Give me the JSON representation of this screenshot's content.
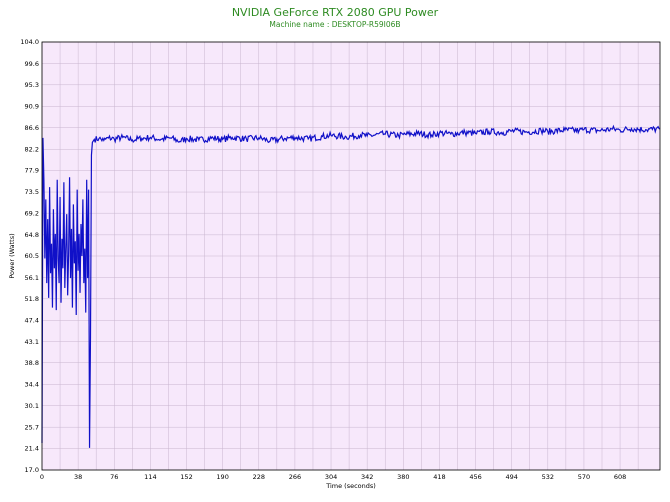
{
  "chart_data": {
    "type": "line",
    "title": "NVIDIA GeForce RTX 2080 GPU Power",
    "subtitle": "Machine name : DESKTOP-R59I06B",
    "xlabel": "Time (seconds)",
    "ylabel": "Power (Watts)",
    "xlim": [
      0,
      650
    ],
    "ylim": [
      17.0,
      104.0
    ],
    "x_ticks": [
      "0",
      "38",
      "76",
      "114",
      "152",
      "190",
      "228",
      "266",
      "304",
      "342",
      "380",
      "418",
      "456",
      "494",
      "532",
      "570",
      "608"
    ],
    "y_ticks": [
      "104.0",
      "99.6",
      "95.3",
      "90.9",
      "86.6",
      "82.2",
      "77.9",
      "73.5",
      "69.2",
      "64.8",
      "60.5",
      "56.1",
      "51.8",
      "47.4",
      "43.1",
      "38.8",
      "34.4",
      "30.1",
      "25.7",
      "21.4",
      "17.0"
    ],
    "grid": true,
    "colors": {
      "plot_bg": "#f7e8fb",
      "grid": "#c9b6cf",
      "line": "#1010c8",
      "title": "#2e8b22"
    },
    "series": [
      {
        "values_xy": [
          [
            0,
            22.5
          ],
          [
            1,
            84.5
          ],
          [
            2,
            76.0
          ],
          [
            3,
            60.0
          ],
          [
            4,
            72.0
          ],
          [
            5,
            55.0
          ],
          [
            6,
            68.0
          ],
          [
            7,
            52.0
          ],
          [
            8,
            74.5
          ],
          [
            9,
            57.0
          ],
          [
            10,
            63.0
          ],
          [
            11,
            50.0
          ],
          [
            12,
            70.0
          ],
          [
            13,
            58.0
          ],
          [
            14,
            65.0
          ],
          [
            15,
            49.5
          ],
          [
            16,
            76.0
          ],
          [
            17,
            60.0
          ],
          [
            18,
            55.0
          ],
          [
            19,
            72.5
          ],
          [
            20,
            51.0
          ],
          [
            21,
            64.0
          ],
          [
            22,
            58.0
          ],
          [
            23,
            75.5
          ],
          [
            24,
            54.0
          ],
          [
            25,
            62.0
          ],
          [
            26,
            69.0
          ],
          [
            27,
            52.5
          ],
          [
            28,
            61.0
          ],
          [
            29,
            76.5
          ],
          [
            30,
            56.0
          ],
          [
            31,
            66.0
          ],
          [
            32,
            50.0
          ],
          [
            33,
            71.0
          ],
          [
            34,
            59.0
          ],
          [
            35,
            63.5
          ],
          [
            36,
            48.5
          ],
          [
            37,
            74.0
          ],
          [
            38,
            57.5
          ],
          [
            39,
            65.0
          ],
          [
            40,
            53.0
          ],
          [
            41,
            67.0
          ],
          [
            42,
            60.5
          ],
          [
            43,
            72.0
          ],
          [
            44,
            55.0
          ],
          [
            45,
            62.0
          ],
          [
            46,
            49.0
          ],
          [
            47,
            76.0
          ],
          [
            48,
            56.0
          ],
          [
            49,
            74.0
          ],
          [
            50,
            21.5
          ],
          [
            51,
            44.0
          ],
          [
            52,
            81.0
          ],
          [
            53,
            83.6
          ],
          [
            55,
            84.2
          ],
          [
            60,
            84.4
          ],
          [
            65,
            84.0
          ],
          [
            70,
            84.5
          ],
          [
            76,
            84.3
          ],
          [
            85,
            84.6
          ],
          [
            95,
            84.1
          ],
          [
            105,
            84.4
          ],
          [
            114,
            84.6
          ],
          [
            125,
            84.2
          ],
          [
            135,
            84.5
          ],
          [
            145,
            83.8
          ],
          [
            152,
            84.4
          ],
          [
            165,
            84.1
          ],
          [
            180,
            84.5
          ],
          [
            190,
            84.2
          ],
          [
            200,
            84.6
          ],
          [
            215,
            84.3
          ],
          [
            228,
            84.5
          ],
          [
            240,
            83.9
          ],
          [
            255,
            84.4
          ],
          [
            266,
            84.6
          ],
          [
            280,
            84.3
          ],
          [
            295,
            84.8
          ],
          [
            304,
            85.0
          ],
          [
            320,
            84.7
          ],
          [
            335,
            85.1
          ],
          [
            342,
            84.9
          ],
          [
            360,
            85.3
          ],
          [
            375,
            85.0
          ],
          [
            380,
            85.2
          ],
          [
            395,
            85.4
          ],
          [
            410,
            85.1
          ],
          [
            418,
            85.5
          ],
          [
            430,
            85.3
          ],
          [
            445,
            85.6
          ],
          [
            456,
            85.4
          ],
          [
            470,
            85.8
          ],
          [
            485,
            85.6
          ],
          [
            494,
            85.9
          ],
          [
            510,
            85.7
          ],
          [
            525,
            86.0
          ],
          [
            532,
            85.8
          ],
          [
            550,
            86.1
          ],
          [
            565,
            86.0
          ],
          [
            570,
            86.2
          ],
          [
            585,
            86.0
          ],
          [
            600,
            86.3
          ],
          [
            608,
            86.1
          ],
          [
            620,
            86.4
          ],
          [
            635,
            86.2
          ],
          [
            650,
            86.3
          ]
        ]
      }
    ]
  }
}
